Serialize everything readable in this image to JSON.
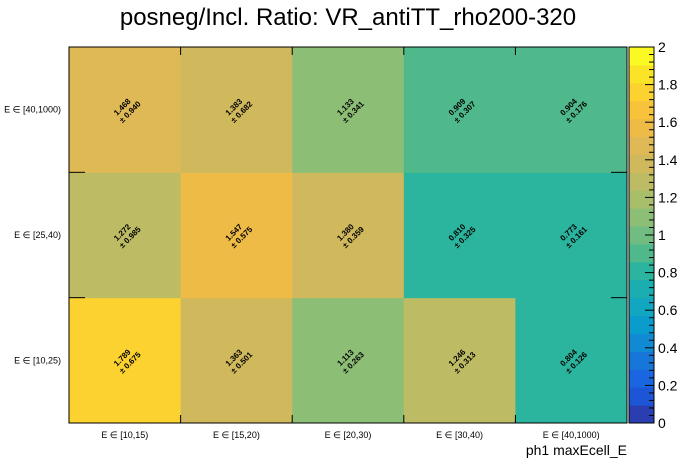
{
  "chart_data": {
    "type": "heatmap",
    "title": "posneg/Incl. Ratio: VR_antiTT_rho200-320",
    "xlabel": "ph1 maxEcell_E",
    "ylabel": "",
    "x_categories": [
      "E ∈ [10,15)",
      "E ∈ [15,20)",
      "E ∈ [20,30)",
      "E ∈ [30,40)",
      "E ∈ [40,1000)"
    ],
    "y_categories": [
      "E ∈ [10,25)",
      "E ∈ [25,40)",
      "E ∈ [40,1000)"
    ],
    "values": [
      [
        1.789,
        1.363,
        1.113,
        1.246,
        0.804
      ],
      [
        1.272,
        1.547,
        1.38,
        0.81,
        0.773
      ],
      [
        1.468,
        1.383,
        1.133,
        0.909,
        0.904
      ]
    ],
    "errors": [
      [
        0.675,
        0.501,
        0.263,
        0.313,
        0.126
      ],
      [
        0.985,
        0.575,
        0.359,
        0.325,
        0.161
      ],
      [
        0.94,
        0.682,
        0.341,
        0.307,
        0.176
      ]
    ],
    "value_labels": [
      [
        "1.789",
        "1.363",
        "1.113",
        "1.246",
        "0.804"
      ],
      [
        "1.272",
        "1.547",
        "1.380",
        "0.810",
        "0.773"
      ],
      [
        "1.468",
        "1.383",
        "1.133",
        "0.909",
        "0.904"
      ]
    ],
    "error_labels": [
      [
        "± 0.675",
        "± 0.501",
        "± 0.263",
        "± 0.313",
        "± 0.126"
      ],
      [
        "± 0.985",
        "± 0.575",
        "± 0.359",
        "± 0.325",
        "± 0.161"
      ],
      [
        "± 0.940",
        "± 0.682",
        "± 0.341",
        "± 0.307",
        "± 0.176"
      ]
    ],
    "zlim": [
      0,
      2
    ],
    "z_ticks": [
      "0",
      "0.2",
      "0.4",
      "0.6",
      "0.8",
      "1",
      "1.2",
      "1.4",
      "1.6",
      "1.8",
      "2"
    ],
    "palette": [
      "#2a3eb1",
      "#1c55d5",
      "#1a66e0",
      "#1677d8",
      "#0f8ad3",
      "#0a9ccd",
      "#12a6c0",
      "#1aaeb0",
      "#2bb49e",
      "#4fb98c",
      "#71bc80",
      "#8cbe75",
      "#a8be6b",
      "#bdbc64",
      "#cfb95c",
      "#dfb955",
      "#eebb46",
      "#f8c23a",
      "#fbd22f",
      "#fbe427",
      "#faf923"
    ]
  }
}
